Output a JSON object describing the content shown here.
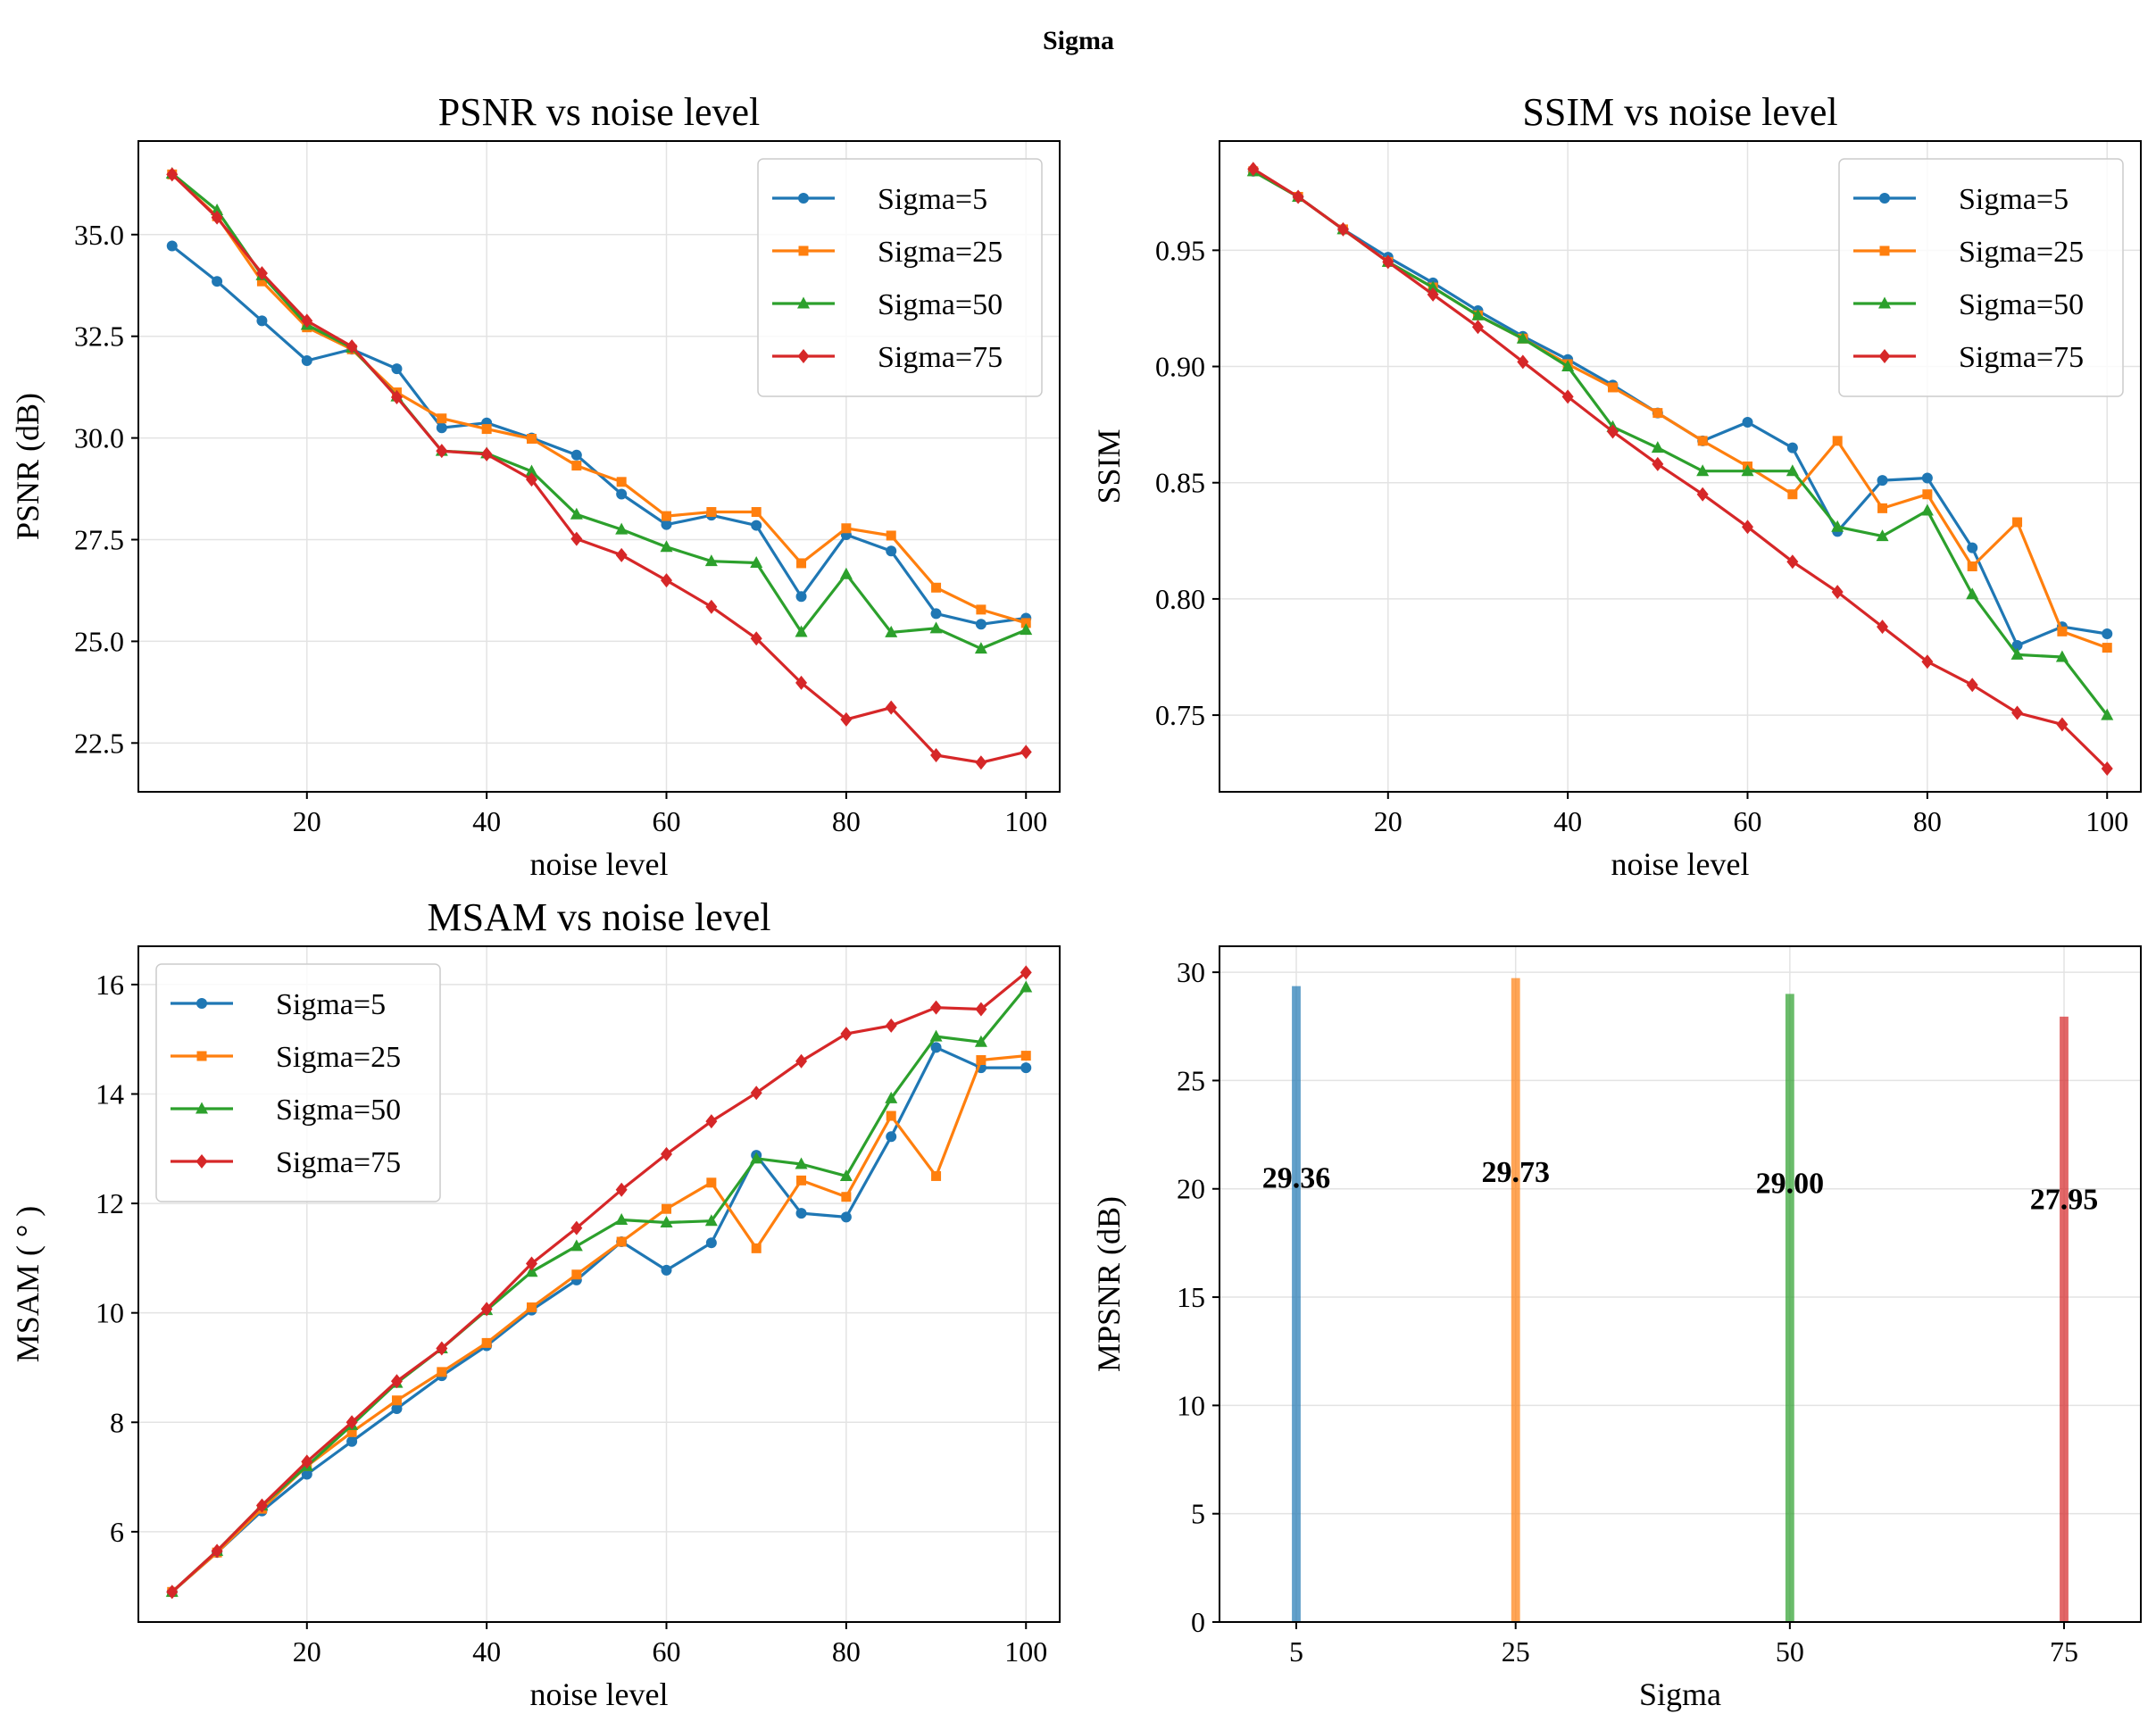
{
  "suptitle": "Sigma",
  "colors": {
    "Sigma=5": "#1f77b4",
    "Sigma=25": "#ff7f0e",
    "Sigma=50": "#2ca02c",
    "Sigma=75": "#d62728"
  },
  "chart_data": [
    {
      "id": "psnr",
      "type": "line",
      "title": "PSNR vs noise level",
      "xlabel": "noise level",
      "ylabel": "PSNR (dB)",
      "xlim": [
        1.25,
        103.75
      ],
      "ylim": [
        21.3,
        37.3
      ],
      "xticks": [
        20,
        40,
        60,
        80,
        100
      ],
      "yticks": [
        22.5,
        25.0,
        27.5,
        30.0,
        32.5,
        35.0
      ],
      "ytick_format": 1,
      "legend": "top-right",
      "x": [
        5,
        10,
        15,
        20,
        25,
        30,
        35,
        40,
        45,
        50,
        55,
        60,
        65,
        70,
        75,
        80,
        85,
        90,
        95,
        100
      ],
      "series": [
        {
          "name": "Sigma=5",
          "marker": "circle",
          "values": [
            34.72,
            33.85,
            32.88,
            31.9,
            32.18,
            31.7,
            30.25,
            30.37,
            30.0,
            29.58,
            28.62,
            27.87,
            28.1,
            27.85,
            26.1,
            27.62,
            27.22,
            25.68,
            25.42,
            25.57
          ]
        },
        {
          "name": "Sigma=25",
          "marker": "square",
          "values": [
            36.48,
            35.45,
            33.85,
            32.72,
            32.18,
            31.12,
            30.48,
            30.22,
            29.98,
            29.32,
            28.92,
            28.08,
            28.18,
            28.18,
            26.92,
            27.78,
            27.6,
            26.32,
            25.78,
            25.45
          ]
        },
        {
          "name": "Sigma=50",
          "marker": "triangle",
          "values": [
            36.5,
            35.6,
            34.0,
            32.78,
            32.22,
            31.02,
            29.68,
            29.62,
            29.18,
            28.12,
            27.75,
            27.32,
            26.97,
            26.93,
            25.23,
            26.65,
            25.22,
            25.32,
            24.82,
            25.28
          ]
        },
        {
          "name": "Sigma=75",
          "marker": "diamond",
          "values": [
            36.48,
            35.42,
            34.05,
            32.88,
            32.25,
            31.0,
            29.68,
            29.6,
            28.98,
            27.52,
            27.12,
            26.5,
            25.85,
            25.07,
            23.98,
            23.08,
            23.37,
            22.2,
            22.02,
            22.28
          ]
        }
      ]
    },
    {
      "id": "ssim",
      "type": "line",
      "title": "SSIM vs noise level",
      "xlabel": "noise level",
      "ylabel": "SSIM",
      "xlim": [
        1.25,
        103.75
      ],
      "ylim": [
        0.717,
        0.997
      ],
      "xticks": [
        20,
        40,
        60,
        80,
        100
      ],
      "yticks": [
        0.75,
        0.8,
        0.85,
        0.9,
        0.95
      ],
      "ytick_format": 2,
      "legend": "top-right",
      "x": [
        5,
        10,
        15,
        20,
        25,
        30,
        35,
        40,
        45,
        50,
        55,
        60,
        65,
        70,
        75,
        80,
        85,
        90,
        95,
        100
      ],
      "series": [
        {
          "name": "Sigma=5",
          "marker": "circle",
          "values": [
            0.984,
            0.973,
            0.959,
            0.947,
            0.936,
            0.924,
            0.913,
            0.903,
            0.892,
            0.88,
            0.868,
            0.876,
            0.865,
            0.829,
            0.851,
            0.852,
            0.822,
            0.78,
            0.788,
            0.785
          ]
        },
        {
          "name": "Sigma=25",
          "marker": "square",
          "values": [
            0.984,
            0.973,
            0.959,
            0.945,
            0.934,
            0.922,
            0.912,
            0.901,
            0.891,
            0.88,
            0.868,
            0.857,
            0.845,
            0.868,
            0.839,
            0.845,
            0.814,
            0.833,
            0.786,
            0.779
          ]
        },
        {
          "name": "Sigma=50",
          "marker": "triangle",
          "values": [
            0.984,
            0.973,
            0.959,
            0.945,
            0.934,
            0.922,
            0.912,
            0.9,
            0.874,
            0.865,
            0.855,
            0.855,
            0.855,
            0.831,
            0.827,
            0.838,
            0.802,
            0.776,
            0.775,
            0.75
          ]
        },
        {
          "name": "Sigma=75",
          "marker": "diamond",
          "values": [
            0.985,
            0.973,
            0.959,
            0.945,
            0.931,
            0.917,
            0.902,
            0.887,
            0.872,
            0.858,
            0.845,
            0.831,
            0.816,
            0.803,
            0.788,
            0.773,
            0.763,
            0.751,
            0.746,
            0.727
          ]
        }
      ]
    },
    {
      "id": "msam",
      "type": "line",
      "title": "MSAM vs noise level",
      "xlabel": "noise level",
      "ylabel": "MSAM (  ° )",
      "xlim": [
        1.25,
        103.75
      ],
      "ylim": [
        4.35,
        16.7
      ],
      "xticks": [
        20,
        40,
        60,
        80,
        100
      ],
      "yticks": [
        6,
        8,
        10,
        12,
        14,
        16
      ],
      "ytick_format": 0,
      "legend": "top-left",
      "x": [
        5,
        10,
        15,
        20,
        25,
        30,
        35,
        40,
        45,
        50,
        55,
        60,
        65,
        70,
        75,
        80,
        85,
        90,
        95,
        100
      ],
      "series": [
        {
          "name": "Sigma=5",
          "marker": "circle",
          "values": [
            4.9,
            5.62,
            6.38,
            7.05,
            7.65,
            8.25,
            8.85,
            9.4,
            10.05,
            10.6,
            11.3,
            10.78,
            11.28,
            12.88,
            11.82,
            11.75,
            13.22,
            14.85,
            14.48,
            14.48
          ]
        },
        {
          "name": "Sigma=25",
          "marker": "square",
          "values": [
            4.9,
            5.62,
            6.42,
            7.2,
            7.82,
            8.4,
            8.92,
            9.45,
            10.1,
            10.7,
            11.3,
            11.9,
            12.38,
            11.18,
            12.42,
            12.12,
            13.6,
            12.5,
            14.62,
            14.7
          ]
        },
        {
          "name": "Sigma=50",
          "marker": "triangle",
          "values": [
            4.9,
            5.65,
            6.48,
            7.2,
            7.95,
            8.72,
            9.35,
            10.05,
            10.75,
            11.22,
            11.7,
            11.65,
            11.68,
            12.82,
            12.72,
            12.5,
            13.92,
            15.05,
            14.95,
            15.95
          ]
        },
        {
          "name": "Sigma=75",
          "marker": "diamond",
          "values": [
            4.9,
            5.65,
            6.48,
            7.28,
            8.0,
            8.75,
            9.35,
            10.07,
            10.9,
            11.55,
            12.25,
            12.9,
            13.5,
            14.02,
            14.6,
            15.1,
            15.25,
            15.58,
            15.55,
            16.22
          ]
        }
      ]
    },
    {
      "id": "mpsnr",
      "type": "bar",
      "title": "",
      "xlabel": "Sigma",
      "ylabel": "MPSNR (dB)",
      "xlim": [
        -2.0,
        82.0
      ],
      "ylim": [
        0,
        31.2
      ],
      "xticks": [
        5,
        25,
        50,
        75
      ],
      "yticks": [
        0,
        5,
        10,
        15,
        20,
        25,
        30
      ],
      "ytick_format": 0,
      "bar_width": 0.8,
      "categories": [
        5,
        25,
        50,
        75
      ],
      "series_names": [
        "Sigma=5",
        "Sigma=25",
        "Sigma=50",
        "Sigma=75"
      ],
      "values": [
        29.36,
        29.73,
        29.0,
        27.95
      ],
      "labels": [
        "29.36",
        "29.73",
        "29.00",
        "27.95"
      ]
    }
  ]
}
